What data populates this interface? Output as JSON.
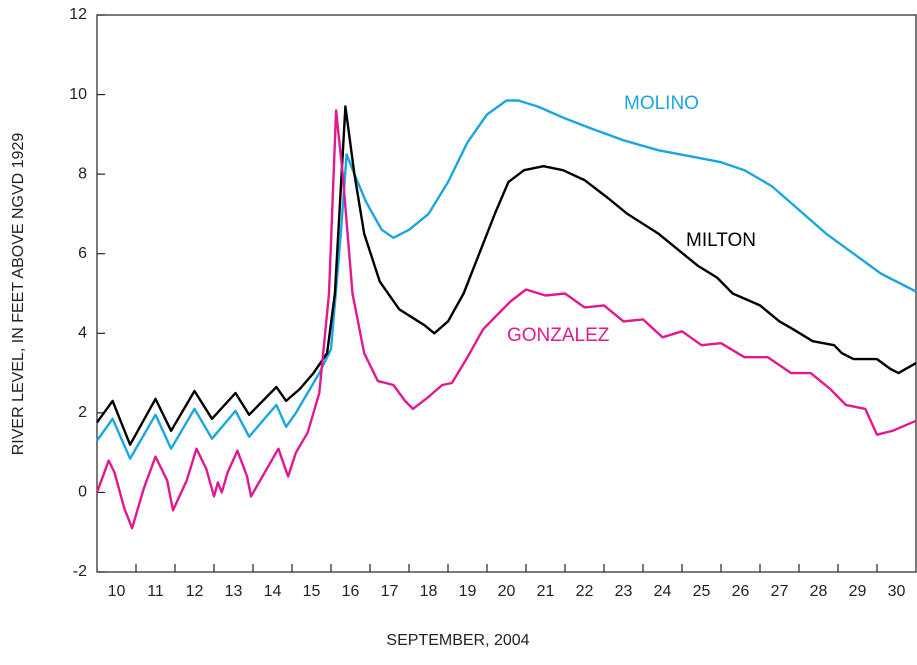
{
  "chart_data": {
    "type": "line",
    "xlabel": "SEPTEMBER, 2004",
    "ylabel": "RIVER LEVEL, IN FEET ABOVE NGVD 1929",
    "xlim": [
      10,
      31
    ],
    "ylim": [
      -2,
      12
    ],
    "yticks": [
      -2,
      0,
      2,
      4,
      6,
      8,
      10,
      12
    ],
    "xticks": [
      {
        "value": 10.5,
        "label": "10"
      },
      {
        "value": 11.5,
        "label": "11"
      },
      {
        "value": 12.5,
        "label": "12"
      },
      {
        "value": 13.5,
        "label": "13"
      },
      {
        "value": 14.5,
        "label": "14"
      },
      {
        "value": 15.5,
        "label": "15"
      },
      {
        "value": 16.5,
        "label": "16"
      },
      {
        "value": 17.5,
        "label": "17"
      },
      {
        "value": 18.5,
        "label": "18"
      },
      {
        "value": 19.5,
        "label": "19"
      },
      {
        "value": 20.5,
        "label": "20"
      },
      {
        "value": 21.5,
        "label": "21"
      },
      {
        "value": 22.5,
        "label": "22"
      },
      {
        "value": 23.5,
        "label": "23"
      },
      {
        "value": 24.5,
        "label": "24"
      },
      {
        "value": 25.5,
        "label": "25"
      },
      {
        "value": 26.5,
        "label": "26"
      },
      {
        "value": 27.5,
        "label": "27"
      },
      {
        "value": 28.5,
        "label": "28"
      },
      {
        "value": 29.5,
        "label": "29"
      },
      {
        "value": 30.5,
        "label": "30"
      }
    ],
    "xtick_marks": [
      11,
      12,
      13,
      14,
      15,
      16,
      17,
      18,
      19,
      20,
      21,
      22,
      23,
      24,
      25,
      26,
      27,
      28,
      29,
      30
    ],
    "series": [
      {
        "name": "MOLINO",
        "color": "#1ba6e0",
        "x": [
          10,
          10.4,
          10.85,
          11.5,
          11.9,
          12.5,
          12.95,
          13.55,
          13.9,
          14.6,
          14.85,
          15.1,
          15.4,
          15.7,
          16.0,
          16.25,
          16.4,
          16.6,
          16.9,
          17.3,
          17.6,
          18.0,
          18.5,
          19.0,
          19.5,
          20.0,
          20.5,
          20.8,
          21.3,
          22.0,
          22.8,
          23.5,
          24.4,
          25.2,
          26.0,
          26.6,
          27.3,
          28.0,
          28.7,
          29.4,
          30.1,
          31
        ],
        "values": [
          1.3,
          1.85,
          0.85,
          1.95,
          1.1,
          2.1,
          1.35,
          2.05,
          1.4,
          2.2,
          1.65,
          2.0,
          2.5,
          3.0,
          3.6,
          6.5,
          8.5,
          8.0,
          7.3,
          6.6,
          6.4,
          6.6,
          7.0,
          7.8,
          8.8,
          9.5,
          9.85,
          9.85,
          9.7,
          9.4,
          9.1,
          8.85,
          8.6,
          8.45,
          8.3,
          8.1,
          7.7,
          7.1,
          6.5,
          6.0,
          5.5,
          5.05
        ]
      },
      {
        "name": "MILTON",
        "color": "#000000",
        "x": [
          10,
          10.4,
          10.85,
          11.5,
          11.9,
          12.5,
          12.95,
          13.55,
          13.9,
          14.6,
          14.85,
          15.2,
          15.55,
          15.9,
          16.1,
          16.37,
          16.6,
          16.85,
          17.25,
          17.75,
          18.4,
          18.65,
          19.0,
          19.4,
          19.8,
          20.2,
          20.55,
          20.95,
          21.45,
          21.95,
          22.5,
          23.1,
          23.6,
          24.4,
          24.9,
          25.4,
          25.9,
          26.3,
          27.0,
          27.5,
          27.85,
          28.35,
          28.9,
          29.1,
          29.4,
          30.0,
          30.35,
          30.55,
          31
        ],
        "values": [
          1.76,
          2.3,
          1.2,
          2.35,
          1.55,
          2.55,
          1.85,
          2.5,
          1.95,
          2.65,
          2.3,
          2.6,
          3.0,
          3.5,
          5.0,
          9.7,
          8.0,
          6.5,
          5.3,
          4.6,
          4.2,
          4.0,
          4.3,
          5.0,
          6.0,
          7.0,
          7.8,
          8.1,
          8.2,
          8.1,
          7.85,
          7.4,
          7.0,
          6.5,
          6.1,
          5.7,
          5.4,
          5.0,
          4.7,
          4.3,
          4.1,
          3.8,
          3.7,
          3.5,
          3.35,
          3.35,
          3.1,
          3.0,
          3.25
        ]
      },
      {
        "name": "GONZALEZ",
        "color": "#e0198f",
        "x": [
          10,
          10.3,
          10.45,
          10.7,
          10.9,
          11.2,
          11.5,
          11.8,
          11.95,
          12.3,
          12.55,
          12.8,
          13.0,
          13.1,
          13.2,
          13.35,
          13.6,
          13.85,
          13.95,
          14.3,
          14.65,
          14.9,
          15.1,
          15.4,
          15.7,
          15.95,
          16.13,
          16.3,
          16.55,
          16.85,
          17.2,
          17.6,
          17.9,
          18.1,
          18.5,
          18.85,
          19.1,
          19.5,
          19.9,
          20.3,
          20.6,
          21.0,
          21.5,
          22.0,
          22.5,
          23.0,
          23.5,
          24.0,
          24.5,
          25.0,
          25.5,
          26.0,
          26.6,
          27.2,
          27.8,
          28.3,
          28.8,
          29.2,
          29.7,
          30.0,
          30.4,
          31
        ],
        "values": [
          0.0,
          0.8,
          0.5,
          -0.4,
          -0.9,
          0.1,
          0.9,
          0.3,
          -0.45,
          0.3,
          1.1,
          0.6,
          -0.1,
          0.25,
          0.0,
          0.5,
          1.05,
          0.4,
          -0.1,
          0.5,
          1.1,
          0.4,
          1.0,
          1.5,
          2.5,
          5.0,
          9.6,
          8.0,
          5.0,
          3.5,
          2.8,
          2.7,
          2.3,
          2.1,
          2.4,
          2.7,
          2.75,
          3.4,
          4.1,
          4.5,
          4.8,
          5.1,
          4.95,
          5.0,
          4.65,
          4.7,
          4.3,
          4.35,
          3.9,
          4.05,
          3.7,
          3.75,
          3.4,
          3.4,
          3.0,
          3.0,
          2.6,
          2.2,
          2.1,
          1.45,
          1.55,
          1.8
        ]
      }
    ]
  }
}
